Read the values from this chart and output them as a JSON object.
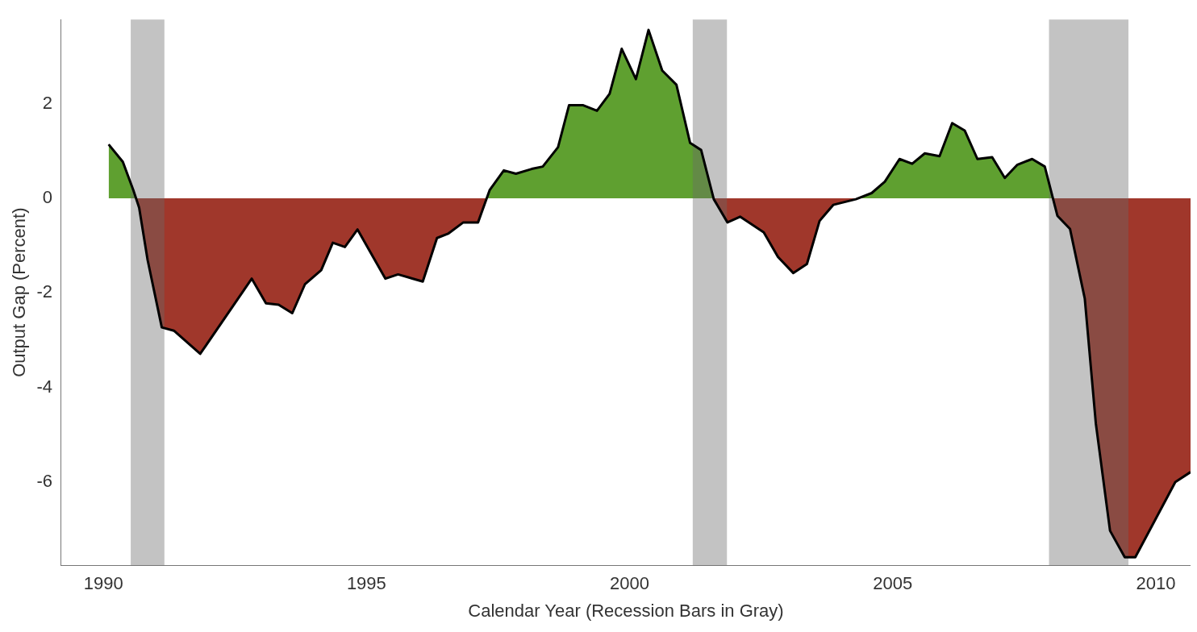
{
  "chart_data": {
    "type": "area",
    "xlabel": "Calendar Year (Recession Bars in Gray)",
    "ylabel": "Output Gap (Percent)",
    "series": [
      {
        "color": "#000000",
        "x": [
          1990.1,
          1990.37,
          1990.57,
          1990.68,
          1990.84,
          1991.11,
          1991.34,
          1991.84,
          1992.82,
          1993.09,
          1993.33,
          1993.59,
          1993.83,
          1994.14,
          1994.36,
          1994.59,
          1994.83,
          1995.36,
          1995.6,
          1996.07,
          1996.34,
          1996.55,
          1996.84,
          1997.12,
          1997.34,
          1997.61,
          1997.84,
          1998.14,
          1998.35,
          1998.64,
          1998.85,
          1999.11,
          1999.38,
          1999.62,
          1999.85,
          2000.12,
          2000.36,
          2000.62,
          2000.89,
          2001.15,
          2001.36,
          2001.6,
          2001.86,
          2002.1,
          2002.55,
          2002.82,
          2003.11,
          2003.37,
          2003.61,
          2003.87,
          2004.3,
          2004.6,
          2004.85,
          2005.13,
          2005.37,
          2005.61,
          2005.89,
          2006.13,
          2006.37,
          2006.61,
          2006.89,
          2007.13,
          2007.37,
          2007.65,
          2007.89,
          2008.13,
          2008.37,
          2008.65,
          2008.86,
          2009.13,
          2009.41,
          2009.61,
          2010.37,
          2010.66
        ],
        "values": [
          1.14,
          0.77,
          0.17,
          -0.2,
          -1.3,
          -2.73,
          -2.8,
          -3.29,
          -1.7,
          -2.22,
          -2.25,
          -2.43,
          -1.82,
          -1.52,
          -0.94,
          -1.03,
          -0.66,
          -1.7,
          -1.61,
          -1.76,
          -0.84,
          -0.75,
          -0.51,
          -0.51,
          0.17,
          0.59,
          0.52,
          0.62,
          0.67,
          1.08,
          1.97,
          1.97,
          1.85,
          2.21,
          3.16,
          2.52,
          3.56,
          2.7,
          2.4,
          1.17,
          1.02,
          -0.02,
          -0.51,
          -0.39,
          -0.72,
          -1.24,
          -1.58,
          -1.39,
          -0.48,
          -0.14,
          -0.02,
          0.11,
          0.35,
          0.83,
          0.73,
          0.95,
          0.89,
          1.59,
          1.43,
          0.83,
          0.87,
          0.43,
          0.71,
          0.83,
          0.67,
          -0.37,
          -0.65,
          -2.12,
          -4.76,
          -7.03,
          -7.59,
          -7.59,
          -6.0,
          -5.79
        ]
      }
    ],
    "bands": [
      {
        "axis": "x",
        "from": 1990.52,
        "to": 1991.16
      },
      {
        "axis": "x",
        "from": 2001.2,
        "to": 2001.85
      },
      {
        "axis": "x",
        "from": 2007.97,
        "to": 2009.48
      }
    ],
    "xlim": [
      1989.2,
      2010.66
    ],
    "ylim": [
      -7.76,
      3.78
    ],
    "xticks": [
      1990,
      1995,
      2000,
      2005,
      2010
    ],
    "yticks": [
      -6,
      -4,
      -2,
      0,
      2
    ],
    "grid": false,
    "legend": false,
    "marker": "none",
    "line_style": "solid"
  }
}
